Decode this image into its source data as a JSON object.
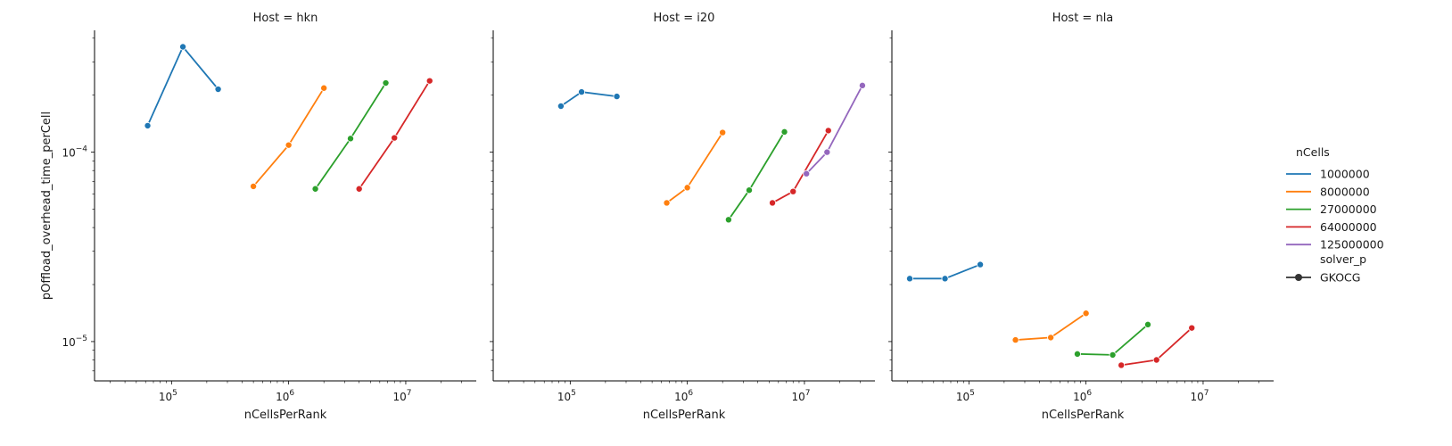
{
  "chart_data": {
    "type": "line",
    "xscale": "log",
    "yscale": "log",
    "xlim": [
      22000,
      40000000
    ],
    "ylim": [
      6.2e-06,
      0.00044
    ],
    "x_ticks": [
      {
        "value": 100000,
        "base": "10",
        "exp": "5"
      },
      {
        "value": 1000000,
        "base": "10",
        "exp": "6"
      },
      {
        "value": 10000000,
        "base": "10",
        "exp": "7"
      }
    ],
    "y_ticks": [
      {
        "value": 0.0001,
        "base": "10",
        "exp": "−4"
      },
      {
        "value": 1e-05,
        "base": "10",
        "exp": "−5"
      }
    ],
    "xlabel": "nCellsPerRank",
    "ylabel": "pOffload_overhead_time_perCell",
    "colors": {
      "1000000": "#1f77b4",
      "8000000": "#ff7f0e",
      "27000000": "#2ca02c",
      "64000000": "#d62728",
      "125000000": "#9467bd"
    },
    "legend": {
      "title": "nCells",
      "entries": [
        {
          "label": "1000000",
          "color": "#1f77b4"
        },
        {
          "label": "8000000",
          "color": "#ff7f0e"
        },
        {
          "label": "27000000",
          "color": "#2ca02c"
        },
        {
          "label": "64000000",
          "color": "#d62728"
        },
        {
          "label": "125000000",
          "color": "#9467bd"
        }
      ],
      "style_title": "solver_p",
      "style_entry": "GKOCG",
      "placement": "right"
    },
    "panels": [
      {
        "title": "Host = hkn",
        "series": [
          {
            "name": "1000000",
            "x": [
              62500,
              125000,
              250000
            ],
            "y": [
              0.000138,
              0.00036,
              0.000215
            ]
          },
          {
            "name": "8000000",
            "x": [
              500000,
              1000000,
              2000000
            ],
            "y": [
              6.6e-05,
              0.000109,
              0.000218
            ]
          },
          {
            "name": "27000000",
            "x": [
              1690000,
              3375000,
              6750000
            ],
            "y": [
              6.4e-05,
              0.000118,
              0.000232
            ]
          },
          {
            "name": "64000000",
            "x": [
              4000000,
              8000000,
              16000000
            ],
            "y": [
              6.4e-05,
              0.000119,
              0.000238
            ]
          }
        ]
      },
      {
        "title": "Host = i20",
        "series": [
          {
            "name": "1000000",
            "x": [
              83300,
              125000,
              250000
            ],
            "y": [
              0.000175,
              0.000208,
              0.000197
            ]
          },
          {
            "name": "8000000",
            "x": [
              667000,
              1000000,
              2000000
            ],
            "y": [
              5.4e-05,
              6.5e-05,
              0.000127
            ]
          },
          {
            "name": "27000000",
            "x": [
              2250000,
              3375000,
              6750000
            ],
            "y": [
              4.4e-05,
              6.3e-05,
              0.000128
            ]
          },
          {
            "name": "64000000",
            "x": [
              5330000,
              8000000,
              16000000
            ],
            "y": [
              5.4e-05,
              6.2e-05,
              0.00013
            ]
          },
          {
            "name": "125000000",
            "x": [
              10400000,
              15600000,
              31250000
            ],
            "y": [
              7.7e-05,
              0.0001,
              0.000225
            ]
          }
        ]
      },
      {
        "title": "Host = nla",
        "series": [
          {
            "name": "1000000",
            "x": [
              31250,
              62500,
              125000
            ],
            "y": [
              2.15e-05,
              2.15e-05,
              2.55e-05
            ]
          },
          {
            "name": "8000000",
            "x": [
              250000,
              500000,
              1000000
            ],
            "y": [
              1.02e-05,
              1.05e-05,
              1.41e-05
            ]
          },
          {
            "name": "27000000",
            "x": [
              843750,
              1690000,
              3375000
            ],
            "y": [
              8.6e-06,
              8.5e-06,
              1.23e-05
            ]
          },
          {
            "name": "64000000",
            "x": [
              2000000,
              4000000,
              8000000
            ],
            "y": [
              7.5e-06,
              8e-06,
              1.18e-05
            ]
          }
        ]
      }
    ]
  }
}
